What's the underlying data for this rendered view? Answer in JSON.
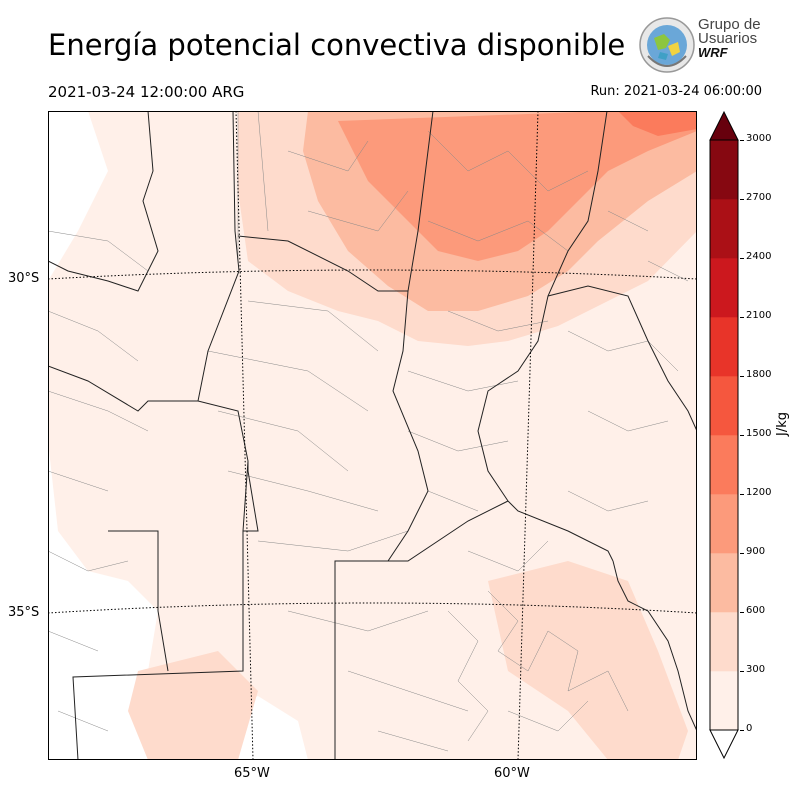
{
  "header": {
    "title": "Energía potencial convectiva disponible",
    "valid_time": "2021-03-24 12:00:00 ARG",
    "run_time": "Run: 2021-03-24 06:00:00"
  },
  "logo": {
    "line1": "Grupo de",
    "line2": "Usuarios",
    "line3": "WRF"
  },
  "map": {
    "lat_labels": [
      "30°S",
      "35°S"
    ],
    "lon_labels": [
      "65°W",
      "60°W"
    ],
    "field": "CAPE"
  },
  "colorbar": {
    "unit": "J/kg",
    "ticks": [
      "0",
      "300",
      "600",
      "900",
      "1200",
      "1500",
      "1800",
      "2100",
      "2400",
      "2700",
      "3000"
    ],
    "colors": [
      "#fff0e9",
      "#fedbcc",
      "#fcbba1",
      "#fc9a7b",
      "#fb7b5c",
      "#f5573e",
      "#e83429",
      "#cc181e",
      "#ab1016",
      "#860811"
    ],
    "over_color": "#67000d",
    "under_color": "#ffffff"
  }
}
